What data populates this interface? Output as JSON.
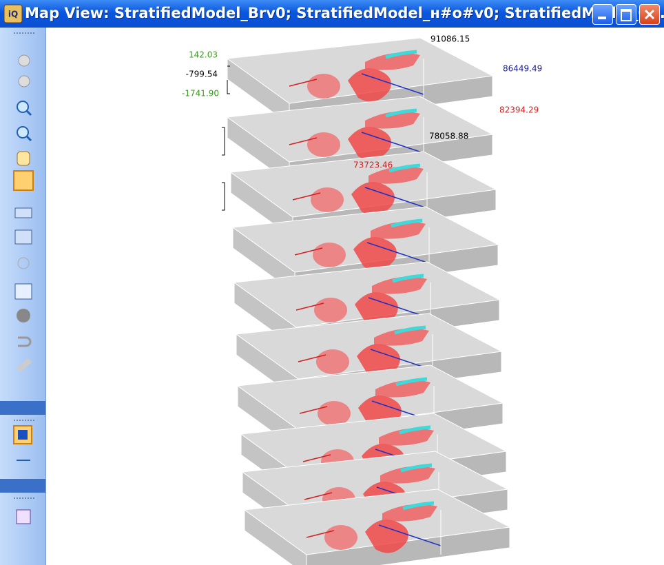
{
  "window": {
    "title": "Map View: StratifiedModel_Brv0; StratifiedModel_н#o#v0; StratifiedModel_C..."
  },
  "map": {
    "axis_labels": [
      "91086.15",
      "86449.49",
      "82394.29",
      "78058.88",
      "73723.46"
    ],
    "depth_labels": [
      "142.03",
      "-799.54",
      "-1741.90"
    ]
  }
}
